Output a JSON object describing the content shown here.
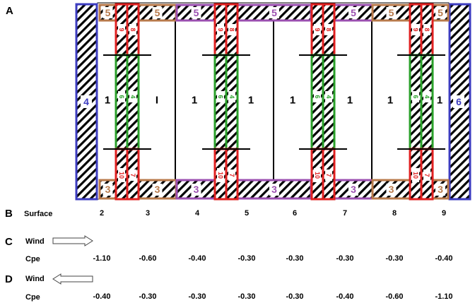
{
  "section_labels": [
    "A",
    "B",
    "C",
    "D"
  ],
  "zone_labels": {
    "one": "1",
    "one_alt": "I",
    "three": "3",
    "four": "4",
    "five": "5",
    "six": "6",
    "seven": "7",
    "eight": "8",
    "nine": "9",
    "ten": "10"
  },
  "colors": {
    "blue": "#3c3cc0",
    "brown": "#b87a4b",
    "purple": "#9b4fb0",
    "red": "#e02020",
    "green": "#2aa02a",
    "hatch": "#000000"
  },
  "surface_row": {
    "label": "Surface",
    "values": [
      "2",
      "3",
      "4",
      "5",
      "6",
      "7",
      "8",
      "9"
    ]
  },
  "wind_rows": [
    {
      "section": "C",
      "wind_label": "Wind",
      "arrow_direction": "right",
      "cpe_label": "Cpe",
      "values": [
        "-1.10",
        "-0.60",
        "-0.40",
        "-0.30",
        "-0.30",
        "-0.30",
        "-0.30",
        "-0.40"
      ]
    },
    {
      "section": "D",
      "wind_label": "Wind",
      "arrow_direction": "left",
      "cpe_label": "Cpe",
      "values": [
        "-0.40",
        "-0.30",
        "-0.30",
        "-0.30",
        "-0.30",
        "-0.40",
        "-0.60",
        "-1.10"
      ]
    }
  ]
}
